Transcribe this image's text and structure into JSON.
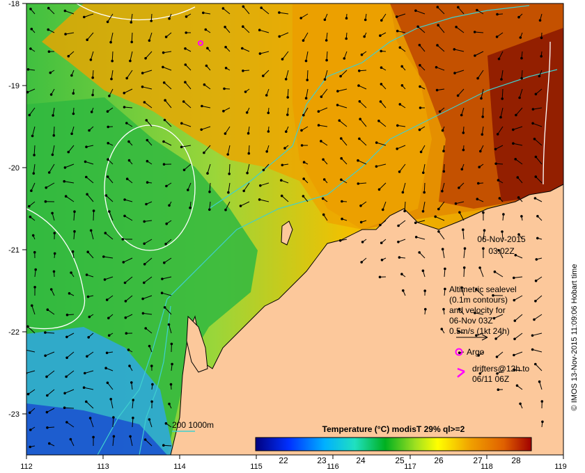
{
  "map": {
    "lon_ticks": [
      "112",
      "113",
      "114",
      "115",
      "116",
      "117",
      "118",
      "119"
    ],
    "lat_ticks": [
      "-18",
      "-19",
      "-20",
      "-21",
      "-22",
      "-23"
    ],
    "date_line1": "06-Nov-2015",
    "date_line2": "03:02Z",
    "legend": {
      "alt_line1": "Altimetric sealevel",
      "alt_line2": "(0.1m contours)",
      "alt_line3": "and velocity for",
      "alt_line4": "06-Nov 03Z",
      "alt_line5": "0.5m/s (1kt 24h)",
      "argo_label": "Argo",
      "drifters_line1": "drifters@12h to",
      "drifters_line2": "06/11 06Z",
      "depth_label": "200  1000m"
    },
    "colorbar": {
      "title": "Temperature (°C) modisT 29% ql>=2",
      "ticks": [
        "22",
        "23",
        "24",
        "25",
        "26",
        "27",
        "28"
      ]
    },
    "credit": "© IMOS 13-Nov-2015 11:09:06 Hobart time",
    "colors": {
      "land": "#fcc89b",
      "contour_bathy": "#3fd0d0",
      "contour_sealevel": "#ffffff",
      "argo": "#ff00ff",
      "drifter": "#ff00ff"
    }
  }
}
